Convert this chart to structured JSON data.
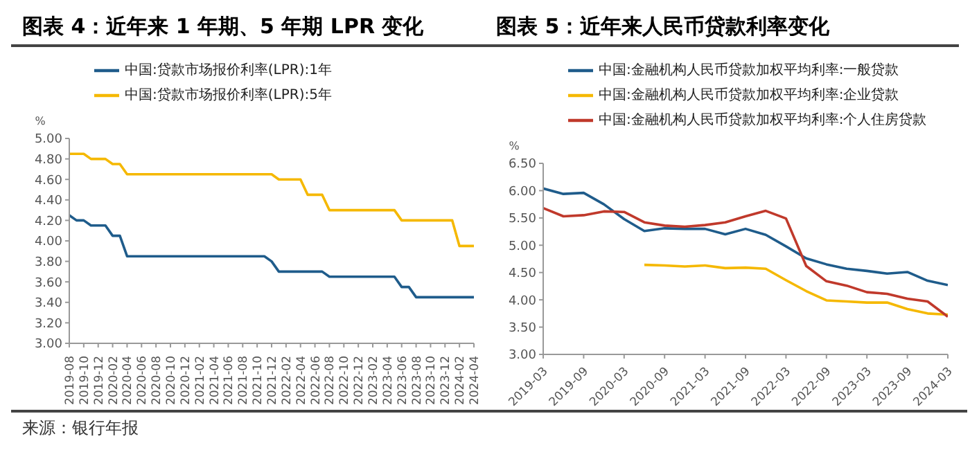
{
  "chart_data": [
    {
      "type": "line",
      "title": "图表 4：近年来 1 年期、5 年期 LPR 变化",
      "ylabel": "%",
      "x": [
        "2019-08",
        "2019-09",
        "2019-10",
        "2019-11",
        "2019-12",
        "2020-01",
        "2020-02",
        "2020-03",
        "2020-04",
        "2020-05",
        "2020-06",
        "2020-07",
        "2020-08",
        "2020-09",
        "2020-10",
        "2020-11",
        "2020-12",
        "2021-01",
        "2021-02",
        "2021-03",
        "2021-04",
        "2021-05",
        "2021-06",
        "2021-07",
        "2021-08",
        "2021-09",
        "2021-10",
        "2021-11",
        "2021-12",
        "2022-01",
        "2022-02",
        "2022-03",
        "2022-04",
        "2022-05",
        "2022-06",
        "2022-07",
        "2022-08",
        "2022-09",
        "2022-10",
        "2022-11",
        "2022-12",
        "2023-01",
        "2023-02",
        "2023-03",
        "2023-04",
        "2023-05",
        "2023-06",
        "2023-07",
        "2023-08",
        "2023-09",
        "2023-10",
        "2023-11",
        "2023-12",
        "2024-01",
        "2024-02",
        "2024-03",
        "2024-04"
      ],
      "series": [
        {
          "name": "中国:贷款市场报价利率(LPR):1年",
          "color": "#1f5c8b",
          "values": [
            4.25,
            4.2,
            4.2,
            4.15,
            4.15,
            4.15,
            4.05,
            4.05,
            3.85,
            3.85,
            3.85,
            3.85,
            3.85,
            3.85,
            3.85,
            3.85,
            3.85,
            3.85,
            3.85,
            3.85,
            3.85,
            3.85,
            3.85,
            3.85,
            3.85,
            3.85,
            3.85,
            3.85,
            3.8,
            3.7,
            3.7,
            3.7,
            3.7,
            3.7,
            3.7,
            3.7,
            3.65,
            3.65,
            3.65,
            3.65,
            3.65,
            3.65,
            3.65,
            3.65,
            3.65,
            3.65,
            3.55,
            3.55,
            3.45,
            3.45,
            3.45,
            3.45,
            3.45,
            3.45,
            3.45,
            3.45,
            3.45
          ]
        },
        {
          "name": "中国:贷款市场报价利率(LPR):5年",
          "color": "#f5b800",
          "values": [
            4.85,
            4.85,
            4.85,
            4.8,
            4.8,
            4.8,
            4.75,
            4.75,
            4.65,
            4.65,
            4.65,
            4.65,
            4.65,
            4.65,
            4.65,
            4.65,
            4.65,
            4.65,
            4.65,
            4.65,
            4.65,
            4.65,
            4.65,
            4.65,
            4.65,
            4.65,
            4.65,
            4.65,
            4.65,
            4.6,
            4.6,
            4.6,
            4.6,
            4.45,
            4.45,
            4.45,
            4.3,
            4.3,
            4.3,
            4.3,
            4.3,
            4.3,
            4.3,
            4.3,
            4.3,
            4.3,
            4.2,
            4.2,
            4.2,
            4.2,
            4.2,
            4.2,
            4.2,
            4.2,
            3.95,
            3.95,
            3.95
          ]
        }
      ],
      "xlim": [
        "2019-08",
        "2024-04"
      ],
      "xticks": [
        "2019-08",
        "2019-10",
        "2019-12",
        "2020-02",
        "2020-04",
        "2020-06",
        "2020-08",
        "2020-10",
        "2020-12",
        "2021-02",
        "2021-04",
        "2021-06",
        "2021-08",
        "2021-10",
        "2021-12",
        "2022-02",
        "2022-04",
        "2022-06",
        "2022-08",
        "2022-10",
        "2022-12",
        "2023-02",
        "2023-04",
        "2023-06",
        "2023-08",
        "2023-10",
        "2023-12",
        "2024-02",
        "2024-04"
      ],
      "ylim": [
        3,
        5
      ],
      "yticks": [
        {
          "value": 3,
          "label": "3.00"
        },
        {
          "value": 3.2,
          "label": "3.20"
        },
        {
          "value": 3.4,
          "label": "3.40"
        },
        {
          "value": 3.6,
          "label": "3.60"
        },
        {
          "value": 3.8,
          "label": "3.80"
        },
        {
          "value": 4,
          "label": "4.00"
        },
        {
          "value": 4.2,
          "label": "4.20"
        },
        {
          "value": 4.4,
          "label": "4.40"
        },
        {
          "value": 4.6,
          "label": "4.60"
        },
        {
          "value": 4.8,
          "label": "4.80"
        },
        {
          "value": 5,
          "label": "5.00"
        }
      ],
      "grid": false,
      "legend": "top",
      "marker": "none",
      "line_style": "solid",
      "annotations": [
        "来源：银行年报"
      ]
    },
    {
      "type": "line",
      "title": "图表 5：近年来人民币贷款利率变化",
      "ylabel": "%",
      "x": [
        "2019-03",
        "2019-06",
        "2019-09",
        "2019-12",
        "2020-03",
        "2020-06",
        "2020-09",
        "2020-12",
        "2021-03",
        "2021-06",
        "2021-09",
        "2021-12",
        "2022-03",
        "2022-06",
        "2022-09",
        "2022-12",
        "2023-03",
        "2023-06",
        "2023-09",
        "2023-12",
        "2024-03"
      ],
      "series": [
        {
          "name": "中国:金融机构人民币贷款加权平均利率:一般贷款",
          "color": "#1f5c8b",
          "values": [
            6.04,
            5.94,
            5.96,
            5.75,
            5.48,
            5.26,
            5.31,
            5.3,
            5.3,
            5.2,
            5.3,
            5.19,
            4.98,
            4.76,
            4.65,
            4.57,
            4.53,
            4.48,
            4.51,
            4.35,
            4.27
          ]
        },
        {
          "name": "中国:金融机构人民币贷款加权平均利率:企业贷款",
          "color": "#f5b800",
          "values": [
            null,
            null,
            null,
            null,
            null,
            4.64,
            4.63,
            4.61,
            4.63,
            4.58,
            4.59,
            4.57,
            4.36,
            4.16,
            3.99,
            3.97,
            3.95,
            3.95,
            3.83,
            3.75,
            3.73
          ]
        },
        {
          "name": "中国:金融机构人民币贷款加权平均利率:个人住房贷款",
          "color": "#c0392b",
          "values": [
            5.68,
            5.53,
            5.55,
            5.62,
            5.61,
            5.42,
            5.36,
            5.34,
            5.37,
            5.42,
            5.53,
            5.63,
            5.49,
            4.62,
            4.34,
            4.26,
            4.14,
            4.11,
            4.02,
            3.97,
            3.69
          ]
        }
      ],
      "xlim": [
        "2019-03",
        "2024-03"
      ],
      "xticks": [
        "2019-03",
        "2019-09",
        "2020-03",
        "2020-09",
        "2021-03",
        "2021-09",
        "2022-03",
        "2022-09",
        "2023-03",
        "2023-09",
        "2024-03"
      ],
      "ylim": [
        3,
        6.5
      ],
      "yticks": [
        {
          "value": 3,
          "label": "3.00"
        },
        {
          "value": 3.5,
          "label": "3.50"
        },
        {
          "value": 4,
          "label": "4.00"
        },
        {
          "value": 4.5,
          "label": "4.50"
        },
        {
          "value": 5,
          "label": "5.00"
        },
        {
          "value": 5.5,
          "label": "5.50"
        },
        {
          "value": 6,
          "label": "6.00"
        },
        {
          "value": 6.5,
          "label": "6.50"
        }
      ],
      "grid": false,
      "legend": "top",
      "marker": "none",
      "line_style": "solid"
    }
  ]
}
